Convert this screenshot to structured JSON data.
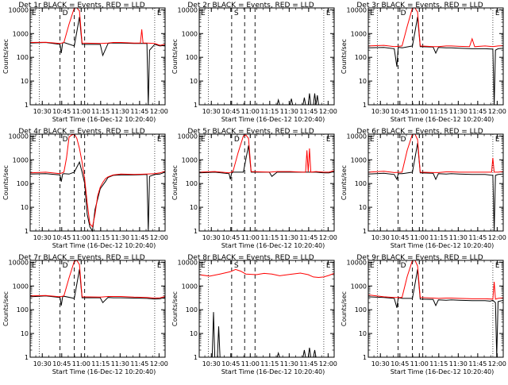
{
  "chart_data": [
    {
      "type": "line",
      "title": "Det 1r BLACK = Events, RED = LLD",
      "xlabel": "Start Time (16-Dec-12 10:20:40)",
      "ylabel": "Counts/sec",
      "x_ticks": [
        "10:30",
        "10:45",
        "11:00",
        "11:15",
        "11:30",
        "11:45",
        "12:00"
      ],
      "y_ticks": [
        "1",
        "10",
        "100",
        "1000",
        "10000"
      ],
      "y_scale": "log",
      "ylim": [
        1,
        12000
      ],
      "markers": [
        "E",
        "D",
        "E"
      ],
      "series": [
        {
          "name": "Events",
          "color": "#000000",
          "x": [
            0,
            12,
            23,
            24,
            25,
            26,
            34,
            38,
            40,
            54,
            56,
            60,
            62,
            64,
            70,
            80,
            90,
            91,
            92,
            96,
            100,
            104
          ],
          "y": [
            400,
            420,
            350,
            150,
            400,
            420,
            300,
            5000,
            350,
            350,
            120,
            380,
            400,
            400,
            400,
            380,
            380,
            1,
            200,
            350,
            300,
            320
          ]
        },
        {
          "name": "LLD",
          "color": "#ff0000",
          "x": [
            0,
            12,
            23,
            26,
            30,
            34,
            36,
            38,
            40,
            54,
            60,
            64,
            70,
            80,
            85,
            86,
            87,
            88,
            90,
            96,
            100,
            104
          ],
          "y": [
            420,
            430,
            380,
            420,
            2500,
            12000,
            12000,
            9000,
            400,
            380,
            400,
            420,
            420,
            400,
            400,
            1500,
            400,
            400,
            400,
            380,
            320,
            350
          ]
        }
      ]
    },
    {
      "type": "line",
      "title": "Det 2r BLACK = Events, RED = LLD",
      "xlabel": "Start Time (16-Dec-12 10:20:40)",
      "ylabel": "Counts/sec",
      "x_ticks": [
        "10:30",
        "10:45",
        "11:00",
        "11:15",
        "11:30",
        "11:45",
        "12:00"
      ],
      "y_ticks": [
        "1",
        "10",
        "100",
        "1000",
        "10000"
      ],
      "y_scale": "log",
      "ylim": [
        1,
        12000
      ],
      "markers": [
        "E",
        "S",
        "E"
      ],
      "series": [
        {
          "name": "Events",
          "color": "#000000",
          "x": [
            60,
            61,
            62,
            70,
            71,
            72,
            80,
            81,
            82,
            84,
            85,
            86,
            88,
            89,
            90,
            91,
            92
          ],
          "y": [
            1,
            1.6,
            1,
            1,
            1.8,
            1,
            1,
            2,
            1,
            1,
            3,
            1,
            1,
            3,
            1,
            2.5,
            1
          ]
        }
      ]
    },
    {
      "type": "line",
      "title": "Det 3r BLACK = Events, RED = LLD",
      "xlabel": "Start Time (16-Dec-12 10:20:40)",
      "ylabel": "Counts/sec",
      "x_ticks": [
        "10:30",
        "10:45",
        "11:00",
        "11:15",
        "11:30",
        "11:45",
        "12:00"
      ],
      "y_ticks": [
        "1",
        "10",
        "100",
        "1000",
        "10000"
      ],
      "y_scale": "log",
      "ylim": [
        1,
        12000
      ],
      "markers": [
        "E",
        "D",
        "E"
      ],
      "series": [
        {
          "name": "Events",
          "color": "#000000",
          "x": [
            0,
            12,
            20,
            22,
            23,
            24,
            26,
            34,
            38,
            40,
            50,
            52,
            54,
            60,
            64,
            70,
            80,
            90,
            96,
            97,
            98,
            100,
            104
          ],
          "y": [
            250,
            260,
            230,
            40,
            250,
            260,
            250,
            300,
            5000,
            280,
            270,
            150,
            260,
            250,
            250,
            240,
            230,
            230,
            220,
            1,
            200,
            230,
            240
          ]
        },
        {
          "name": "LLD",
          "color": "#ff0000",
          "x": [
            0,
            12,
            20,
            26,
            30,
            34,
            36,
            38,
            40,
            50,
            54,
            60,
            64,
            70,
            78,
            80,
            82,
            90,
            96,
            100,
            104
          ],
          "y": [
            300,
            320,
            280,
            300,
            2000,
            12000,
            12000,
            8000,
            300,
            280,
            280,
            300,
            300,
            290,
            280,
            600,
            280,
            300,
            280,
            300,
            310
          ]
        }
      ]
    },
    {
      "type": "line",
      "title": "Det 4r BLACK = Events, RED = LLD",
      "xlabel": "Start Time (16-Dec-12 10:20:40)",
      "ylabel": "Counts/sec",
      "x_ticks": [
        "10:30",
        "10:45",
        "11:00",
        "11:15",
        "11:30",
        "11:45",
        "12:00"
      ],
      "y_ticks": [
        "1",
        "10",
        "100",
        "1000",
        "10000"
      ],
      "y_scale": "log",
      "ylim": [
        1,
        12000
      ],
      "markers": [
        "E",
        "D",
        "E"
      ],
      "series": [
        {
          "name": "Events",
          "color": "#000000",
          "x": [
            0,
            12,
            23,
            24,
            25,
            26,
            30,
            34,
            38,
            40,
            42,
            44,
            46,
            48,
            50,
            54,
            58,
            60,
            64,
            70,
            80,
            90,
            91,
            92,
            96,
            100,
            104
          ],
          "y": [
            250,
            260,
            230,
            120,
            250,
            260,
            250,
            300,
            800,
            300,
            100,
            5,
            1.5,
            1,
            8,
            60,
            120,
            180,
            220,
            230,
            230,
            240,
            1,
            200,
            240,
            250,
            300
          ]
        },
        {
          "name": "LLD",
          "color": "#ff0000",
          "x": [
            0,
            12,
            23,
            26,
            28,
            30,
            32,
            34,
            36,
            38,
            40,
            42,
            44,
            46,
            48,
            50,
            52,
            54,
            56,
            58,
            60,
            64,
            70,
            80,
            90,
            96,
            100,
            104
          ],
          "y": [
            280,
            300,
            260,
            300,
            1200,
            9000,
            11000,
            12000,
            8000,
            3000,
            800,
            150,
            15,
            2,
            1.5,
            5,
            30,
            70,
            110,
            160,
            190,
            230,
            250,
            240,
            250,
            260,
            280,
            330
          ]
        }
      ]
    },
    {
      "type": "line",
      "title": "Det 5r BLACK = Events, RED = LLD",
      "xlabel": "Start Time (16-Dec-12 10:20:40)",
      "ylabel": "Counts/sec",
      "x_ticks": [
        "10:30",
        "10:45",
        "11:00",
        "11:15",
        "11:30",
        "11:45",
        "12:00"
      ],
      "y_ticks": [
        "1",
        "10",
        "100",
        "1000",
        "10000"
      ],
      "y_scale": "log",
      "ylim": [
        1,
        12000
      ],
      "markers": [
        "E",
        "D",
        "E"
      ],
      "series": [
        {
          "name": "Events",
          "color": "#000000",
          "x": [
            0,
            12,
            23,
            24,
            25,
            26,
            34,
            38,
            40,
            54,
            56,
            60,
            64,
            70,
            80,
            90,
            96,
            100,
            104
          ],
          "y": [
            280,
            300,
            260,
            150,
            280,
            300,
            300,
            4000,
            300,
            300,
            200,
            300,
            300,
            300,
            300,
            300,
            280,
            280,
            320
          ]
        },
        {
          "name": "LLD",
          "color": "#ff0000",
          "x": [
            0,
            12,
            23,
            26,
            30,
            34,
            36,
            38,
            40,
            54,
            60,
            64,
            70,
            80,
            82,
            83,
            84,
            85,
            86,
            90,
            96,
            100,
            104
          ],
          "y": [
            300,
            320,
            280,
            320,
            2000,
            10000,
            11000,
            8000,
            320,
            300,
            320,
            320,
            320,
            300,
            300,
            2500,
            300,
            3000,
            300,
            320,
            300,
            300,
            350
          ]
        }
      ]
    },
    {
      "type": "line",
      "title": "Det 6r BLACK = Events, RED = LLD",
      "xlabel": "Start Time (16-Dec-12 10:20:40)",
      "ylabel": "Counts/sec",
      "x_ticks": [
        "10:30",
        "10:45",
        "11:00",
        "11:15",
        "11:30",
        "11:45",
        "12:00"
      ],
      "y_ticks": [
        "1",
        "10",
        "100",
        "1000",
        "10000"
      ],
      "y_scale": "log",
      "ylim": [
        1,
        12000
      ],
      "markers": [
        "E",
        "D",
        "E"
      ],
      "series": [
        {
          "name": "Events",
          "color": "#000000",
          "x": [
            0,
            12,
            20,
            22,
            23,
            24,
            26,
            34,
            38,
            40,
            50,
            52,
            54,
            60,
            64,
            70,
            80,
            90,
            96,
            97,
            98,
            100,
            104
          ],
          "y": [
            250,
            270,
            240,
            150,
            250,
            260,
            260,
            300,
            5000,
            280,
            270,
            150,
            260,
            250,
            260,
            250,
            240,
            240,
            220,
            1,
            220,
            240,
            250
          ]
        },
        {
          "name": "LLD",
          "color": "#ff0000",
          "x": [
            0,
            12,
            20,
            26,
            30,
            34,
            36,
            38,
            40,
            50,
            54,
            60,
            64,
            70,
            80,
            90,
            95,
            96,
            97,
            100,
            104
          ],
          "y": [
            300,
            330,
            290,
            300,
            2500,
            12000,
            12000,
            7000,
            300,
            290,
            290,
            310,
            310,
            300,
            300,
            300,
            300,
            1200,
            300,
            300,
            320
          ]
        }
      ]
    },
    {
      "type": "line",
      "title": "Det 7r BLACK = Events, RED = LLD",
      "xlabel": "Start Time (16-Dec-12 10:20:40)",
      "ylabel": "Counts/sec",
      "x_ticks": [
        "10:30",
        "10:45",
        "11:00",
        "11:15",
        "11:30",
        "11:45",
        "12:00"
      ],
      "y_ticks": [
        "1",
        "10",
        "100",
        "1000",
        "10000"
      ],
      "y_scale": "log",
      "ylim": [
        1,
        12000
      ],
      "markers": [
        "E",
        "D",
        "E"
      ],
      "series": [
        {
          "name": "Events",
          "color": "#000000",
          "x": [
            0,
            12,
            23,
            24,
            25,
            26,
            34,
            38,
            40,
            54,
            56,
            60,
            64,
            70,
            80,
            90,
            96,
            100,
            104
          ],
          "y": [
            350,
            380,
            330,
            150,
            350,
            370,
            300,
            5000,
            320,
            320,
            200,
            330,
            320,
            320,
            310,
            300,
            280,
            290,
            330
          ]
        },
        {
          "name": "LLD",
          "color": "#ff0000",
          "x": [
            0,
            12,
            23,
            26,
            30,
            34,
            36,
            38,
            40,
            54,
            60,
            64,
            70,
            80,
            90,
            96,
            100,
            104
          ],
          "y": [
            380,
            400,
            350,
            380,
            2200,
            11000,
            12000,
            8000,
            350,
            340,
            360,
            360,
            360,
            340,
            330,
            310,
            320,
            360
          ]
        }
      ]
    },
    {
      "type": "line",
      "title": "Det 8r BLACK = Events, RED = LLD",
      "xlabel": "Start Time (16-Dec-12 10:20:40)",
      "ylabel": "Counts/sec",
      "x_ticks": [
        "10:30",
        "10:45",
        "11:00",
        "11:15",
        "11:30",
        "11:45",
        "12:00"
      ],
      "y_ticks": [
        "1",
        "10",
        "100",
        "1000",
        "10000"
      ],
      "y_scale": "log",
      "ylim": [
        1,
        12000
      ],
      "markers": [
        "E",
        "S",
        "E"
      ],
      "series": [
        {
          "name": "Events",
          "color": "#000000",
          "x": [
            10,
            11,
            12,
            14,
            15,
            16,
            60,
            61,
            62,
            80,
            81,
            82,
            84,
            85,
            86,
            88,
            89,
            90
          ],
          "y": [
            1,
            80,
            1,
            1,
            20,
            1,
            1,
            1.5,
            1,
            1,
            2,
            1,
            1,
            2.5,
            1,
            1,
            2,
            1
          ]
        },
        {
          "name": "LLD",
          "color": "#ff0000",
          "x": [
            0,
            8,
            16,
            24,
            28,
            32,
            36,
            44,
            50,
            56,
            62,
            70,
            78,
            84,
            88,
            92,
            96,
            100,
            104
          ],
          "y": [
            3000,
            2600,
            3200,
            4000,
            5000,
            4200,
            3200,
            3000,
            3400,
            3200,
            2700,
            3100,
            3500,
            3000,
            2400,
            2300,
            2400,
            2800,
            3400
          ]
        }
      ]
    },
    {
      "type": "line",
      "title": "Det 9r BLACK = Events, RED = LLD",
      "xlabel": "Start Time (16-Dec-12 10:20:40)",
      "ylabel": "Counts/sec",
      "x_ticks": [
        "10:30",
        "10:45",
        "11:00",
        "11:15",
        "11:30",
        "11:45",
        "12:00"
      ],
      "y_ticks": [
        "1",
        "10",
        "100",
        "1000",
        "10000"
      ],
      "y_scale": "log",
      "ylim": [
        1,
        12000
      ],
      "markers": [
        "E",
        "D",
        "E"
      ],
      "series": [
        {
          "name": "Events",
          "color": "#000000",
          "x": [
            0,
            12,
            20,
            22,
            23,
            24,
            26,
            34,
            38,
            40,
            50,
            52,
            54,
            60,
            64,
            70,
            80,
            90,
            94,
            96,
            98,
            99,
            100,
            104
          ],
          "y": [
            350,
            330,
            300,
            120,
            300,
            320,
            300,
            300,
            5000,
            280,
            270,
            150,
            260,
            250,
            260,
            250,
            240,
            240,
            230,
            250,
            200,
            1,
            220,
            250
          ]
        },
        {
          "name": "LLD",
          "color": "#ff0000",
          "x": [
            0,
            12,
            20,
            26,
            30,
            34,
            36,
            38,
            40,
            50,
            54,
            60,
            64,
            70,
            80,
            90,
            96,
            97,
            98,
            100,
            104
          ],
          "y": [
            420,
            350,
            330,
            330,
            2500,
            12000,
            12000,
            7000,
            330,
            310,
            300,
            310,
            310,
            300,
            290,
            290,
            280,
            1500,
            280,
            300,
            320
          ]
        }
      ]
    }
  ]
}
